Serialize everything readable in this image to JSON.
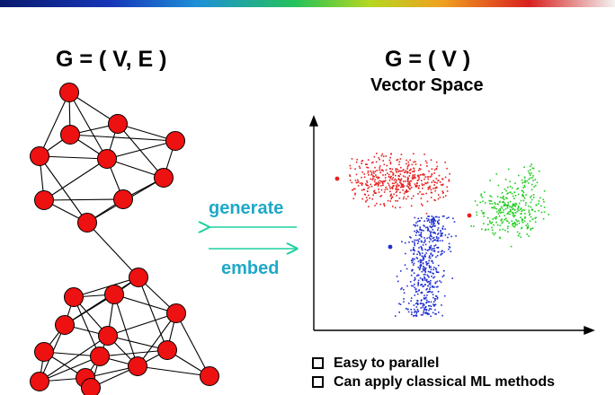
{
  "header": {
    "graph_formula": "G = ( V, E )",
    "vector_formula": "G = ( V )",
    "vector_subtitle": "Vector Space"
  },
  "arrows": {
    "top_label": "generate",
    "bottom_label": "embed",
    "color": "#1fa8c8"
  },
  "graph": {
    "node_color": "#ee1111",
    "node_count": 24
  },
  "scatter": {
    "clusters": [
      {
        "color": "#e82020"
      },
      {
        "color": "#20cc20"
      },
      {
        "color": "#2030d0"
      }
    ]
  },
  "bullets": [
    {
      "text": "Easy to parallel"
    },
    {
      "text": "Can apply classical ML methods"
    }
  ]
}
